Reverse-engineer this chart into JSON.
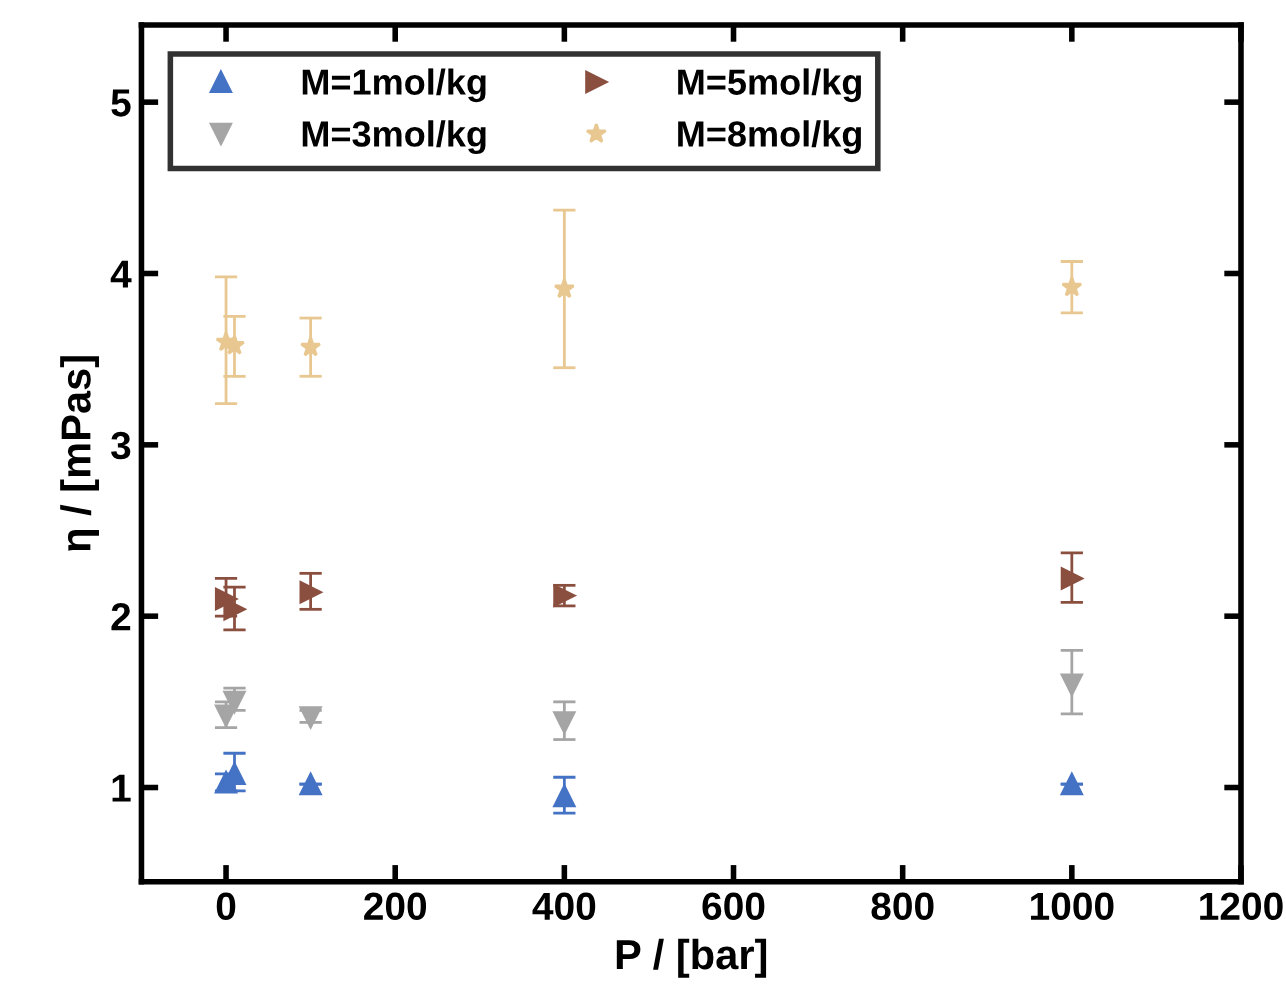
{
  "chart_data": {
    "type": "scatter",
    "xlabel": "P / [bar]",
    "ylabel": "η / [mPas]",
    "xlim": [
      -100,
      1200
    ],
    "ylim": [
      0.45,
      5.45
    ],
    "xticks": [
      0,
      200,
      400,
      600,
      800,
      1000,
      1200
    ],
    "yticks": [
      1,
      2,
      3,
      4,
      5
    ],
    "grid": false,
    "legend": "top left",
    "series": [
      {
        "name": "M=1mol/kg",
        "color": "#4472c4",
        "marker": "triangle",
        "x": [
          0,
          10,
          100,
          400,
          1000
        ],
        "values": [
          1.03,
          1.08,
          1.02,
          0.95,
          1.02
        ],
        "errors": [
          [
            0.98,
            1.08
          ],
          [
            0.98,
            1.2
          ],
          null,
          [
            0.85,
            1.06
          ],
          null
        ]
      },
      {
        "name": "M=3mol/kg",
        "color": "#a5a5a5",
        "marker": "triangle_down",
        "x": [
          0,
          10,
          100,
          400,
          1000
        ],
        "values": [
          1.42,
          1.5,
          1.41,
          1.38,
          1.6
        ],
        "errors": [
          [
            1.35,
            1.5
          ],
          [
            1.45,
            1.58
          ],
          [
            1.38,
            1.45
          ],
          [
            1.28,
            1.5
          ],
          [
            1.43,
            1.8
          ]
        ]
      },
      {
        "name": "M=5mol/kg",
        "color": "#8b4f3f",
        "marker": "triangle_right",
        "x": [
          0,
          10,
          100,
          400,
          1000
        ],
        "values": [
          2.1,
          2.04,
          2.14,
          2.12,
          2.22
        ],
        "errors": [
          [
            2.0,
            2.22
          ],
          [
            1.92,
            2.17
          ],
          [
            2.04,
            2.25
          ],
          [
            2.06,
            2.18
          ],
          [
            2.08,
            2.37
          ]
        ]
      },
      {
        "name": "M=8mol/kg",
        "color": "#e8c890",
        "marker": "star",
        "x": [
          0,
          10,
          100,
          400,
          1000
        ],
        "values": [
          3.6,
          3.58,
          3.57,
          3.91,
          3.92
        ],
        "errors": [
          [
            3.24,
            3.98
          ],
          [
            3.4,
            3.75
          ],
          [
            3.4,
            3.74
          ],
          [
            3.45,
            4.37
          ],
          [
            3.77,
            4.07
          ]
        ]
      }
    ]
  }
}
